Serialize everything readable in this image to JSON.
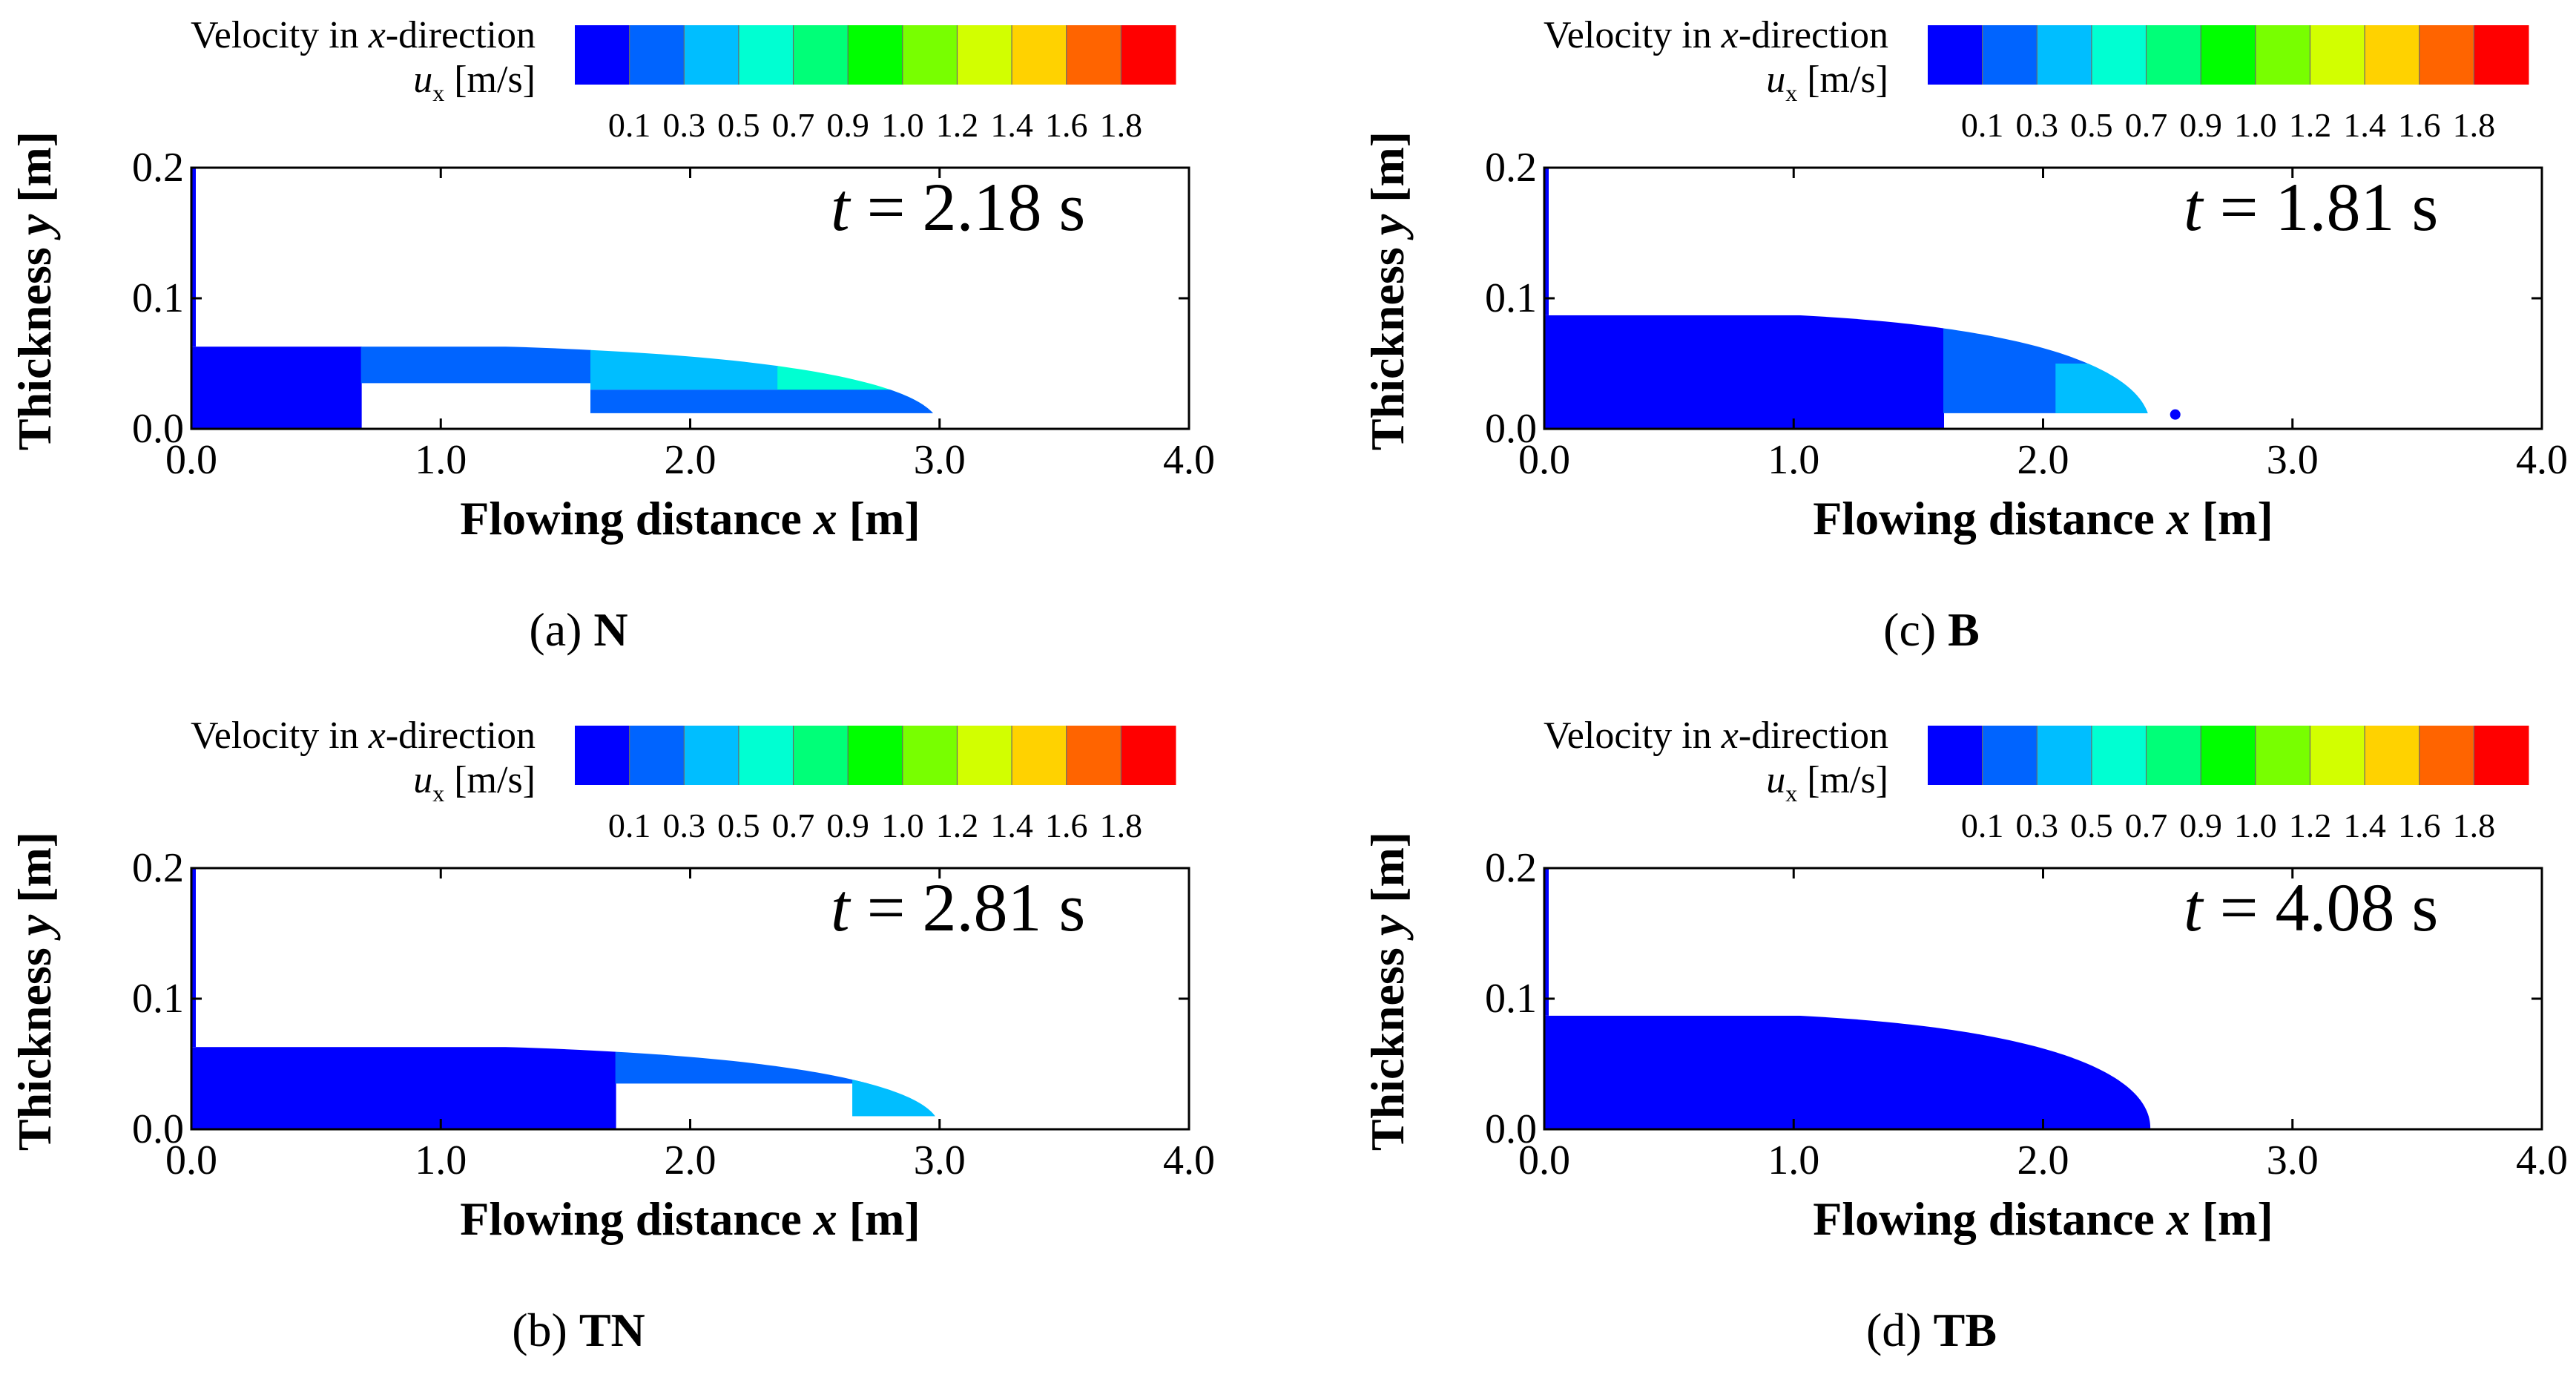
{
  "colorbar": {
    "title_line1_pre": "Velocity in ",
    "title_line1_var": "x",
    "title_line1_post": "-direction",
    "title_line2_var": "u",
    "title_line2_sub": "x",
    "title_line2_unit": " [m/s]",
    "ticks": [
      "0.1",
      "0.3",
      "0.5",
      "0.7",
      "0.9",
      "1.0",
      "1.2",
      "1.4",
      "1.6",
      "1.8"
    ],
    "colors": [
      "#0000ff",
      "#0064ff",
      "#00beff",
      "#00ffd2",
      "#00ff78",
      "#00ff00",
      "#78ff00",
      "#d2ff00",
      "#ffd200",
      "#ff6400",
      "#ff0000"
    ]
  },
  "chart_data": [
    {
      "type": "area",
      "panel_label": "(a)",
      "case_name": "N",
      "time_label": "t",
      "time_value": "= 2.18 s",
      "xlabel_pre": "Flowing distance ",
      "xlabel_var": "x",
      "xlabel_unit": " [m]",
      "ylabel_pre": "Thickness ",
      "ylabel_var": "y",
      "ylabel_unit": " [m]",
      "xlim": [
        0,
        4
      ],
      "ylim": [
        0,
        0.2
      ],
      "x_ticks": [
        "0.0",
        "1.0",
        "2.0",
        "3.0",
        "4.0"
      ],
      "y_ticks": [
        "0.0",
        "0.1",
        "0.2"
      ],
      "front_x": 3.0,
      "height": 0.063,
      "zones": [
        {
          "x0": 0.0,
          "x1": 0.68,
          "y0": 0.0,
          "y1": 0.063,
          "color": "#0000ff"
        },
        {
          "x0": 0.68,
          "x1": 1.6,
          "y0": 0.035,
          "y1": 0.063,
          "color": "#0064ff"
        },
        {
          "x0": 1.6,
          "x1": 2.35,
          "y0": 0.03,
          "y1": 0.063,
          "color": "#00beff"
        },
        {
          "x0": 2.35,
          "x1": 3.0,
          "y0": 0.018,
          "y1": 0.063,
          "color": "#00ffd2"
        },
        {
          "x0": 1.6,
          "x1": 3.0,
          "y0": 0.012,
          "y1": 0.03,
          "color": "#0064ff"
        }
      ]
    },
    {
      "type": "area",
      "panel_label": "(c)",
      "case_name": "B",
      "time_label": "t",
      "time_value": "= 1.81 s",
      "xlabel_pre": "Flowing distance ",
      "xlabel_var": "x",
      "xlabel_unit": " [m]",
      "ylabel_pre": "Thickness ",
      "ylabel_var": "y",
      "ylabel_unit": " [m]",
      "xlim": [
        0,
        4
      ],
      "ylim": [
        0,
        0.2
      ],
      "x_ticks": [
        "0.0",
        "1.0",
        "2.0",
        "3.0",
        "4.0"
      ],
      "y_ticks": [
        "0.0",
        "0.1",
        "0.2"
      ],
      "front_x": 2.43,
      "height": 0.087,
      "zones": [
        {
          "x0": 0.0,
          "x1": 1.6,
          "y0": 0.0,
          "y1": 0.087,
          "color": "#0000ff"
        },
        {
          "x0": 1.6,
          "x1": 2.43,
          "y0": 0.012,
          "y1": 0.087,
          "color": "#0064ff"
        },
        {
          "x0": 2.05,
          "x1": 2.43,
          "y0": 0.012,
          "y1": 0.05,
          "color": "#00beff"
        }
      ]
    },
    {
      "type": "area",
      "panel_label": "(b)",
      "case_name": "TN",
      "time_label": "t",
      "time_value": "= 2.81 s",
      "xlabel_pre": "Flowing distance ",
      "xlabel_var": "x",
      "xlabel_unit": " [m]",
      "ylabel_pre": "Thickness ",
      "ylabel_var": "y",
      "ylabel_unit": " [m]",
      "xlim": [
        0,
        4
      ],
      "ylim": [
        0,
        0.2
      ],
      "x_ticks": [
        "0.0",
        "1.0",
        "2.0",
        "3.0",
        "4.0"
      ],
      "y_ticks": [
        "0.0",
        "0.1",
        "0.2"
      ],
      "front_x": 3.0,
      "height": 0.063,
      "zones": [
        {
          "x0": 0.0,
          "x1": 1.7,
          "y0": 0.0,
          "y1": 0.063,
          "color": "#0000ff"
        },
        {
          "x0": 1.7,
          "x1": 3.0,
          "y0": 0.035,
          "y1": 0.063,
          "color": "#0064ff"
        },
        {
          "x0": 2.65,
          "x1": 3.0,
          "y0": 0.01,
          "y1": 0.045,
          "color": "#00beff"
        }
      ]
    },
    {
      "type": "area",
      "panel_label": "(d)",
      "case_name": "TB",
      "time_label": "t",
      "time_value": "= 4.08 s",
      "xlabel_pre": "Flowing distance ",
      "xlabel_var": "x",
      "xlabel_unit": " [m]",
      "ylabel_pre": "Thickness ",
      "ylabel_var": "y",
      "ylabel_unit": " [m]",
      "xlim": [
        0,
        4
      ],
      "ylim": [
        0,
        0.2
      ],
      "x_ticks": [
        "0.0",
        "1.0",
        "2.0",
        "3.0",
        "4.0"
      ],
      "y_ticks": [
        "0.0",
        "0.1",
        "0.2"
      ],
      "front_x": 2.43,
      "height": 0.087,
      "zones": [
        {
          "x0": 0.0,
          "x1": 2.43,
          "y0": 0.0,
          "y1": 0.087,
          "color": "#0000ff"
        }
      ]
    }
  ]
}
